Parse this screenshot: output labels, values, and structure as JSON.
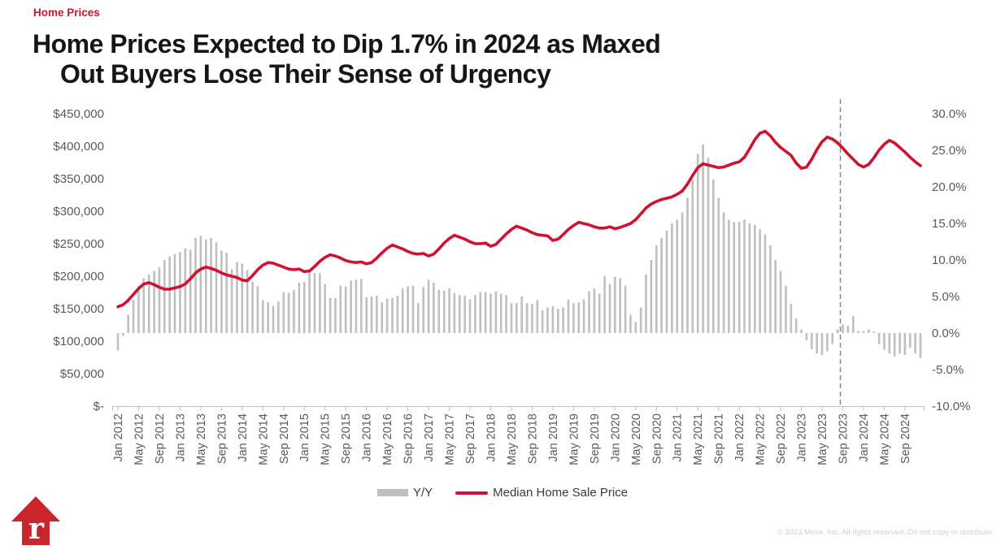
{
  "header": {
    "kicker": "Home Prices",
    "title_line1": "Home Prices Expected to Dip 1.7% in 2024 as Maxed",
    "title_line2": "Out Buyers Lose Their Sense of Urgency"
  },
  "logo": {
    "letter": "r",
    "color": "#C9252D",
    "shape": "house-arrow-icon"
  },
  "footer": {
    "copyright": "© 2023 Move, Inc. All rights reserved. Do not copy or distribute."
  },
  "chart_data": {
    "type": "bar+line combo",
    "title": "Home Prices Expected to Dip 1.7% in 2024 as Maxed Out Buyers Lose Their Sense of Urgency",
    "x_start_month": "Jan 2012",
    "x_end_month": "Dec 2024",
    "frequency": "monthly",
    "forecast_divider_at": "Sep 2023",
    "grid": "off",
    "legend_position": "bottom-center",
    "colors": {
      "bar": "#BFBFBF",
      "line": "#CE1230",
      "axis_text": "#595959",
      "divider": "#808080"
    },
    "left_axis": {
      "min": 0,
      "max": 450000,
      "ticks": [
        "$450,000",
        "$400,000",
        "$350,000",
        "$300,000",
        "$250,000",
        "$200,000",
        "$150,000",
        "$100,000",
        "$50,000",
        "$-"
      ]
    },
    "right_axis": {
      "min": -10,
      "max": 30,
      "ticks": [
        "30.0%",
        "25.0%",
        "20.0%",
        "15.0%",
        "10.0%",
        "5.0%",
        "0.0%",
        "-5.0%",
        "-10.0%"
      ]
    },
    "x_axis": {
      "tick_labels": [
        "Jan 2012",
        "May 2012",
        "Sep 2012",
        "Jan 2013",
        "May 2013",
        "Sep 2013",
        "Jan 2014",
        "May 2014",
        "Sep 2014",
        "Jan 2015",
        "May 2015",
        "Sep 2015",
        "Jan 2016",
        "May 2016",
        "Sep 2016",
        "Jan 2017",
        "May 2017",
        "Sep 2017",
        "Jan 2018",
        "May 2018",
        "Sep 2018",
        "Jan 2019",
        "May 2019",
        "Sep 2019",
        "Jan 2020",
        "May 2020",
        "Sep 2020",
        "Jan 2021",
        "May 2021",
        "Sep 2021",
        "Jan 2022",
        "May 2022",
        "Sep 2022",
        "Jan 2023",
        "May 2023",
        "Sep 2023",
        "Jan 2024",
        "May 2024",
        "Sep 2024"
      ]
    },
    "legend": [
      {
        "label": "Y/Y",
        "swatch": "bar",
        "color": "#BFBFBF"
      },
      {
        "label": "Median Home Sale Price",
        "swatch": "line",
        "color": "#CE1230"
      }
    ],
    "series": {
      "median_price_usd": [
        153000,
        156000,
        163000,
        172000,
        181000,
        188000,
        190000,
        187000,
        183000,
        180000,
        180000,
        182000,
        184000,
        188000,
        196000,
        205000,
        211000,
        214000,
        212000,
        209000,
        205000,
        202000,
        200000,
        198000,
        194000,
        193000,
        201000,
        210000,
        217000,
        221000,
        220000,
        217000,
        214000,
        211000,
        210000,
        211000,
        207000,
        208000,
        215000,
        223000,
        229000,
        233000,
        231000,
        228000,
        224000,
        222000,
        221000,
        222000,
        219000,
        221000,
        228000,
        236000,
        243000,
        248000,
        245000,
        242000,
        238000,
        235000,
        234000,
        235000,
        231000,
        234000,
        242000,
        251000,
        258000,
        263000,
        260000,
        257000,
        253000,
        250000,
        250000,
        251000,
        246000,
        249000,
        257000,
        265000,
        272000,
        277000,
        274000,
        271000,
        267000,
        264000,
        263000,
        262000,
        255000,
        257000,
        264000,
        272000,
        278000,
        283000,
        281000,
        279000,
        276000,
        274000,
        274000,
        276000,
        273000,
        275000,
        278000,
        281000,
        287000,
        296000,
        305000,
        311000,
        315000,
        318000,
        320000,
        322000,
        326000,
        331000,
        342000,
        355000,
        367000,
        373000,
        371000,
        369000,
        367000,
        368000,
        371000,
        374000,
        376000,
        383000,
        396000,
        410000,
        420000,
        423000,
        416000,
        406000,
        398000,
        392000,
        386000,
        374000,
        366000,
        368000,
        380000,
        395000,
        407000,
        414000,
        411000,
        405000,
        397000,
        388000,
        380000,
        372000,
        368000,
        372000,
        382000,
        394000,
        403000,
        409000,
        405000,
        398000,
        391000,
        383000,
        376000,
        370000
      ],
      "yoy_pct": [
        -2.4,
        -0.4,
        2.5,
        4.5,
        6.5,
        7.5,
        8.0,
        8.5,
        9.0,
        10.0,
        10.5,
        10.8,
        11.1,
        11.6,
        11.4,
        13.0,
        13.3,
        12.8,
        13.0,
        12.4,
        11.3,
        11.0,
        8.7,
        9.7,
        9.5,
        8.6,
        7.0,
        6.4,
        4.5,
        4.2,
        3.7,
        4.3,
        5.6,
        5.5,
        5.9,
        6.9,
        7.0,
        8.3,
        8.2,
        8.2,
        6.7,
        4.8,
        4.8,
        6.5,
        6.4,
        7.2,
        7.3,
        7.4,
        4.9,
        5.0,
        5.1,
        4.2,
        4.7,
        4.8,
        5.1,
        6.1,
        6.4,
        6.5,
        4.1,
        6.3,
        7.3,
        6.9,
        5.9,
        5.8,
        6.1,
        5.5,
        5.2,
        5.1,
        4.6,
        5.2,
        5.6,
        5.6,
        5.4,
        5.7,
        5.4,
        5.2,
        4.1,
        4.1,
        5.0,
        4.1,
        4.0,
        4.5,
        3.1,
        3.5,
        3.7,
        3.3,
        3.5,
        4.6,
        4.1,
        4.2,
        4.6,
        5.7,
        6.1,
        5.4,
        7.8,
        6.7,
        7.7,
        7.5,
        6.5,
        2.5,
        1.5,
        3.5,
        8.0,
        10.0,
        12.0,
        13.0,
        14.0,
        15.0,
        15.5,
        16.5,
        18.5,
        21.0,
        24.5,
        25.8,
        24.0,
        21.0,
        18.5,
        16.5,
        15.5,
        15.2,
        15.2,
        15.5,
        15.0,
        14.8,
        14.2,
        13.5,
        12.0,
        10.0,
        8.5,
        6.5,
        4.0,
        2.0,
        0.5,
        -1.0,
        -2.2,
        -2.8,
        -3.0,
        -2.5,
        -1.5,
        0.5,
        1.2,
        1.0,
        2.3,
        0.3,
        0.3,
        0.5,
        0.2,
        -1.5,
        -2.3,
        -2.8,
        -3.2,
        -2.8,
        -3.0,
        -2.0,
        -2.8,
        -3.4
      ]
    }
  }
}
